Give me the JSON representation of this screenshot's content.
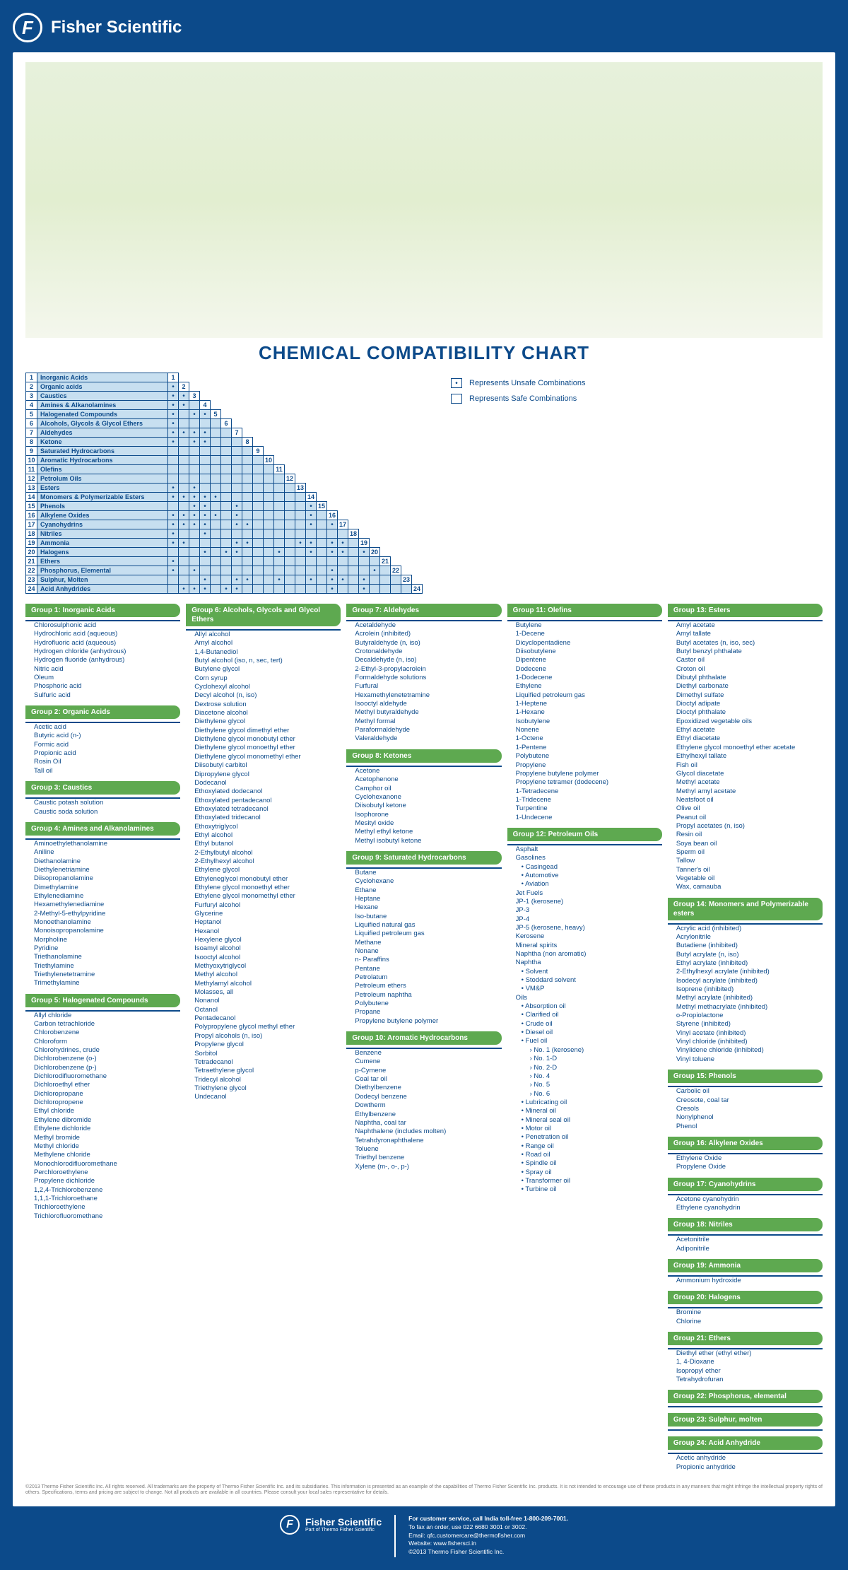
{
  "brand": "Fisher Scientific",
  "title": "CHEMICAL COMPATIBILITY CHART",
  "legend": {
    "unsafe": "Represents Unsafe Combinations",
    "safe": "Represents Safe Combinations"
  },
  "rows": [
    {
      "n": 1,
      "name": "Inorganic Acids"
    },
    {
      "n": 2,
      "name": "Organic acids"
    },
    {
      "n": 3,
      "name": "Caustics"
    },
    {
      "n": 4,
      "name": "Amines & Alkanolamines"
    },
    {
      "n": 5,
      "name": "Halogenated Compounds"
    },
    {
      "n": 6,
      "name": "Alcohols, Glycols & Glycol Ethers"
    },
    {
      "n": 7,
      "name": "Aldehydes"
    },
    {
      "n": 8,
      "name": "Ketone"
    },
    {
      "n": 9,
      "name": "Saturated Hydrocarbons"
    },
    {
      "n": 10,
      "name": "Aromatic Hydrocarbons"
    },
    {
      "n": 11,
      "name": "Olefins"
    },
    {
      "n": 12,
      "name": "Petrolum Oils"
    },
    {
      "n": 13,
      "name": "Esters"
    },
    {
      "n": 14,
      "name": "Monomers & Polymerizable Esters"
    },
    {
      "n": 15,
      "name": "Phenols"
    },
    {
      "n": 16,
      "name": "Alkylene Oxides"
    },
    {
      "n": 17,
      "name": "Cyanohydrins"
    },
    {
      "n": 18,
      "name": "Nitriles"
    },
    {
      "n": 19,
      "name": "Ammonia"
    },
    {
      "n": 20,
      "name": "Halogens"
    },
    {
      "n": 21,
      "name": "Ethers"
    },
    {
      "n": 22,
      "name": "Phosphorus, Elemental"
    },
    {
      "n": 23,
      "name": "Sulphur, Molten"
    },
    {
      "n": 24,
      "name": "Acid Anhydrides"
    }
  ],
  "unsafe": {
    "2": [
      1
    ],
    "3": [
      1,
      2
    ],
    "4": [
      1,
      2
    ],
    "5": [
      1,
      3,
      4
    ],
    "6": [
      1
    ],
    "7": [
      1,
      2,
      3,
      4
    ],
    "8": [
      1,
      3,
      4
    ],
    "13": [
      1,
      3
    ],
    "14": [
      1,
      2,
      3,
      4,
      5
    ],
    "15": [
      3,
      4,
      7,
      14
    ],
    "16": [
      1,
      2,
      3,
      4,
      5,
      7,
      14
    ],
    "17": [
      1,
      2,
      3,
      4,
      7,
      8,
      14,
      16
    ],
    "18": [
      1,
      4
    ],
    "19": [
      1,
      2,
      7,
      8,
      13,
      14,
      16,
      17
    ],
    "20": [
      4,
      6,
      7,
      11,
      14,
      16,
      17,
      19
    ],
    "21": [
      1
    ],
    "22": [
      1,
      3,
      16,
      20
    ],
    "23": [
      4,
      7,
      8,
      11,
      14,
      16,
      17,
      19
    ],
    "24": [
      2,
      3,
      4,
      6,
      7,
      16,
      19
    ]
  },
  "groups": [
    {
      "col": 0,
      "title": "Group 1: Inorganic Acids",
      "items": [
        "Chlorosulphonic acid",
        "Hydrochloric acid (aqueous)",
        "Hydrofluoric acid (aqueous)",
        "Hydrogen chloride (anhydrous)",
        "Hydrogen fluoride (anhydrous)",
        "Nitric acid",
        "Oleum",
        "Phosphoric acid",
        "Sulfuric acid"
      ]
    },
    {
      "col": 0,
      "title": "Group 2: Organic Acids",
      "items": [
        "Acetic acid",
        "Butyric acid (n-)",
        "Formic acid",
        "Propionic acid",
        "Rosin Oil",
        "Tall oil"
      ]
    },
    {
      "col": 0,
      "title": "Group 3: Caustics",
      "items": [
        "Caustic potash solution",
        "Caustic soda solution"
      ]
    },
    {
      "col": 0,
      "title": "Group 4: Amines and Alkanolamines",
      "items": [
        "Aminoethylethanolamine",
        "Aniline",
        "Diethanolamine",
        "Diethylenetriamine",
        "Diisopropanolamine",
        "Dimethylamine",
        "Ethylenediamine",
        "Hexamethylenediamine",
        "2-Methyl-5-ethylpyridine",
        "Monoethanolamine",
        "Monoisopropanolamine",
        "Morpholine",
        "Pyridine",
        "Triethanolamine",
        "Triethylamine",
        "Triethylenetetramine",
        "Trimethylamine"
      ]
    },
    {
      "col": 0,
      "title": "Group 5: Halogenated Compounds",
      "items": [
        "Allyl chloride",
        "Carbon tetrachloride",
        "Chlorobenzene",
        "Chloroform",
        "Chlorohydrines, crude",
        "Dichlorobenzene (o-)",
        "Dichlorobenzene (p-)",
        "Dichlorodifluoromethane",
        "Dichloroethyl ether",
        "Dichloropropane",
        "Dichloropropene",
        "Ethyl chloride",
        "Ethylene dibromide",
        "Ethylene dichloride",
        "Methyl bromide",
        "Methyl chloride",
        "Methylene chloride",
        "Monochlorodifluoromethane",
        "Perchloroethylene",
        "Propylene dichloride",
        "1,2,4-Trichlorobenzene",
        "1,1,1-Trichloroethane",
        "Trichloroethylene",
        "Trichlorofluoromethane"
      ]
    },
    {
      "col": 1,
      "title": "Group 6: Alcohols, Glycols and Glycol Ethers",
      "items": [
        "Allyl alcohol",
        "Amyl alcohol",
        "1,4-Butanediol",
        "Butyl alcohol (iso, n, sec, tert)",
        "Butylene glycol",
        "Corn syrup",
        "Cyclohexyl alcohol",
        "Decyl alcohol (n, iso)",
        "Dextrose solution",
        "Diacetone alcohol",
        "Diethylene glycol",
        "Diethylene glycol dimethyl ether",
        "Diethylene glycol monobutyl ether",
        "Diethylene glycol monoethyl ether",
        "Diethylene glycol monomethyl ether",
        "Diisobutyl carbitol",
        "Dipropylene glycol",
        "Dodecanol",
        "Ethoxylated dodecanol",
        "Ethoxylated pentadecanol",
        "Ethoxylated tetradecanol",
        "Ethoxylated tridecanol",
        "Ethoxytriglycol",
        "Ethyl alcohol",
        "Ethyl butanol",
        "2-Ethylbutyl alcohol",
        "2-Ethylhexyl alcohol",
        "Ethylene glycol",
        "Ethyleneglycol monobutyl ether",
        "Ethylene glycol monoethyl ether",
        "Ethylene glycol monomethyl ether",
        "Furfuryl alcohol",
        "Glycerine",
        "Heptanol",
        "Hexanol",
        "Hexylene glycol",
        "Isoamyl alcohol",
        "Isooctyl alcohol",
        "Methyoxytriglycol",
        "Methyl alcohol",
        "Methylamyl alcohol",
        "Molasses, all",
        "Nonanol",
        "Octanol",
        "Pentadecanol",
        "Polypropylene glycol methyl ether",
        "Propyl alcohols (n, iso)",
        "Propylene glycol",
        "Sorbitol",
        "Tetradecanol",
        "Tetraethylene glycol",
        "Tridecyl alcohol",
        "Triethylene glycol",
        "Undecanol"
      ]
    },
    {
      "col": 2,
      "title": "Group 7: Aldehydes",
      "items": [
        "Acetaldehyde",
        "Acrolein (inhibited)",
        "Butyraldehyde (n, iso)",
        "Crotonaldehyde",
        "Decaldehyde (n, iso)",
        "2-Ethyl-3-propylacrolein",
        "Formaldehyde solutions",
        "Furfural",
        "Hexamethylenetetramine",
        "Isooctyl aldehyde",
        "Methyl butyraldehyde",
        "Methyl formal",
        "Paraformaldehyde",
        "Valeraldehyde"
      ]
    },
    {
      "col": 2,
      "title": "Group 8: Ketones",
      "items": [
        "Acetone",
        "Acetophenone",
        "Camphor oil",
        "Cyclohexanone",
        "Diisobutyl ketone",
        "Isophorone",
        "Mesityl oxide",
        "Methyl ethyl ketone",
        "Methyl isobutyl ketone"
      ]
    },
    {
      "col": 2,
      "title": "Group 9: Saturated Hydrocarbons",
      "items": [
        "Butane",
        "Cyclohexane",
        "Ethane",
        "Heptane",
        "Hexane",
        "Iso-butane",
        "Liquified natural gas",
        "Liquified petroleum gas",
        "Methane",
        "Nonane",
        "n- Paraffins",
        "Pentane",
        "Petrolatum",
        "Petroleum ethers",
        "Petroleum naphtha",
        "Polybutene",
        "Propane",
        "Propylene butylene polymer"
      ]
    },
    {
      "col": 2,
      "title": "Group 10: Aromatic Hydrocarbons",
      "items": [
        "Benzene",
        "Cumene",
        "p-Cymene",
        "Coal tar oil",
        "Diethylbenzene",
        "Dodecyl benzene",
        "Dowtherm",
        "Ethylbenzene",
        "Naphtha, coal tar",
        "Naphthalene (includes molten)",
        "Tetrahdyronaphthalene",
        "Toluene",
        "Triethyl benzene",
        "Xylene (m-, o-, p-)"
      ]
    },
    {
      "col": 3,
      "title": "Group 11: Olefins",
      "items": [
        "Butylene",
        "1-Decene",
        "Dicyclopentadiene",
        "Diisobutylene",
        "Dipentene",
        "Dodecene",
        "1-Dodecene",
        "Ethylene",
        "Liquified petroleum gas",
        "1-Heptene",
        "1-Hexane",
        "Isobutylene",
        "Nonene",
        "1-Octene",
        "1-Pentene",
        "Polybutene",
        "Propylene",
        "Propylene butylene polymer",
        "Propylene tetramer (dodecene)",
        "1-Tetradecene",
        "1-Tridecene",
        "Turpentine",
        "1-Undecene"
      ]
    },
    {
      "col": 3,
      "title": "Group 12: Petroleum Oils",
      "items": [
        "Asphalt",
        "Gasolines",
        {
          "t": "Casingead",
          "i": 1
        },
        {
          "t": "Automotive",
          "i": 1
        },
        {
          "t": "Aviation",
          "i": 1
        },
        "Jet Fuels",
        "JP-1 (kerosene)",
        "JP-3",
        "JP-4",
        "JP-5 (kerosene, heavy)",
        "Kerosene",
        "Mineral spirits",
        "Naphtha (non aromatic)",
        "Naphtha",
        {
          "t": "Solvent",
          "i": 1
        },
        {
          "t": "Stoddard solvent",
          "i": 1
        },
        {
          "t": "VM&P",
          "i": 1
        },
        "Oils",
        {
          "t": "Absorption oil",
          "i": 1
        },
        {
          "t": "Clarified oil",
          "i": 1
        },
        {
          "t": "Crude oil",
          "i": 1
        },
        {
          "t": "Diesel oil",
          "i": 1
        },
        {
          "t": "Fuel oil",
          "i": 1
        },
        {
          "t": "No. 1 (kerosene)",
          "i": 2
        },
        {
          "t": "No. 1-D",
          "i": 2
        },
        {
          "t": "No. 2-D",
          "i": 2
        },
        {
          "t": "No. 4",
          "i": 2
        },
        {
          "t": "No. 5",
          "i": 2
        },
        {
          "t": "No. 6",
          "i": 2
        },
        {
          "t": "Lubricating oil",
          "i": 1
        },
        {
          "t": "Mineral oil",
          "i": 1
        },
        {
          "t": "Mineral seal oil",
          "i": 1
        },
        {
          "t": "Motor oil",
          "i": 1
        },
        {
          "t": "Penetration oil",
          "i": 1
        },
        {
          "t": "Range oil",
          "i": 1
        },
        {
          "t": "Road oil",
          "i": 1
        },
        {
          "t": "Spindle oil",
          "i": 1
        },
        {
          "t": "Spray oil",
          "i": 1
        },
        {
          "t": "Transformer oil",
          "i": 1
        },
        {
          "t": "Turbine oil",
          "i": 1
        }
      ]
    },
    {
      "col": 4,
      "title": "Group 13: Esters",
      "items": [
        "Amyl acetate",
        "Amyl tallate",
        "Butyl acetates (n, iso, sec)",
        "Butyl benzyl phthalate",
        "Castor oil",
        "Croton oil",
        "Dibutyl phthalate",
        "Diethyl carbonate",
        "Dimethyl sulfate",
        "Dioctyl adipate",
        "Dioctyl phthalate",
        "Epoxidized vegetable oils",
        "Ethyl acetate",
        "Ethyl diacetate",
        "Ethylene glycol monoethyl ether acetate",
        "Ethylhexyl tallate",
        "Fish oil",
        "Glycol diacetate",
        "Methyl acetate",
        "Methyl amyl acetate",
        "Neatsfoot oil",
        "Olive oil",
        "Peanut oil",
        "Propyl acetates (n, iso)",
        "Resin oil",
        "Soya bean oil",
        "Sperm oil",
        "Tallow",
        "Tanner's oil",
        "Vegetable oil",
        "Wax, carnauba"
      ]
    },
    {
      "col": 4,
      "title": "Group 14: Monomers and Polymerizable esters",
      "items": [
        "Acrylic acid (inhibited)",
        "Acrylonitrile",
        "Butadiene (inhibited)",
        "Butyl acrylate (n, iso)",
        "Ethyl acrylate (inhibited)",
        "2-Ethylhexyl acrylate (inhibited)",
        "Isodecyl acrylate (inhibited)",
        "Isoprene (inhibited)",
        "Methyl acrylate (inhibited)",
        "Methyl methacrylate (inhibited)",
        "o-Propiolactone",
        "Styrene (inhibited)",
        "Vinyl acetate (inhibited)",
        "Vinyl chloride (inhibited)",
        "Vinylidene chloride (inhibited)",
        "Vinyl toluene"
      ]
    },
    {
      "col": 4,
      "title": "Group 15: Phenols",
      "items": [
        "Carbolic oil",
        "Creosote, coal tar",
        "Cresols",
        "Nonylphenol",
        "Phenol"
      ]
    },
    {
      "col": 4,
      "title": "Group 16: Alkylene Oxides",
      "items": [
        "Ethylene Oxide",
        "Propylene Oxide"
      ]
    },
    {
      "col": 4,
      "title": "Group 17: Cyanohydrins",
      "items": [
        "Acetone cyanohydrin",
        "Ethylene cyanohydrin"
      ]
    },
    {
      "col": 4,
      "title": "Group 18: Nitriles",
      "items": [
        "Acetonitrile",
        "Adiponitrile"
      ]
    },
    {
      "col": 4,
      "title": "Group 19: Ammonia",
      "items": [
        "Ammonium hydroxide"
      ]
    },
    {
      "col": 4,
      "title": "Group 20: Halogens",
      "items": [
        "Bromine",
        "Chlorine"
      ]
    },
    {
      "col": 4,
      "title": "Group 21: Ethers",
      "items": [
        "Diethyl ether (ethyl ether)",
        "1, 4-Dioxane",
        "Isopropyl ether",
        "Tetrahydrofuran"
      ]
    },
    {
      "col": 4,
      "title": "Group 22: Phosphorus, elemental",
      "items": []
    },
    {
      "col": 4,
      "title": "Group 23: Sulphur, molten",
      "items": []
    },
    {
      "col": 4,
      "title": "Group 24: Acid Anhydride",
      "items": [
        "Acetic anhydride",
        "Propionic anhydride"
      ]
    }
  ],
  "disclaimer": "©2013 Thermo Fisher Scientific Inc. All rights reserved. All trademarks are the property of Thermo Fisher Scientific Inc. and its subsidiaries. This information is presented as an example of the capabilities of Thermo Fisher Scientific Inc. products. It is not intended to encourage use of these products in any manners that might infringe the intellectual property rights of others. Specifications, terms and pricing are subject to change. Not all products are available in all countries. Please consult your local sales representative for details.",
  "footer": {
    "sub": "Part of Thermo Fisher Scientific",
    "lines": [
      "For customer service, call India toll-free 1-800-209-7001.",
      "To fax an order, use 022 6680 3001 or 3002.",
      "Email: qfc.customercare@thermofisher.com",
      "Website: www.fishersci.in",
      "©2013 Thermo Fisher Scientific Inc."
    ]
  }
}
